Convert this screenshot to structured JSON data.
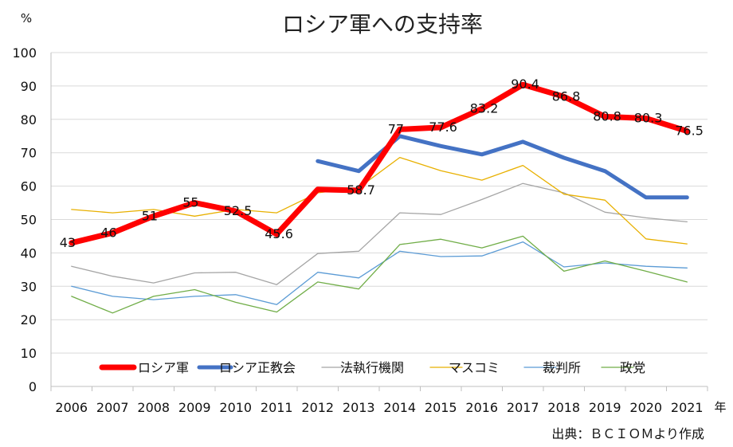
{
  "chart_data": {
    "type": "line",
    "title": "ロシア軍への支持率",
    "y_unit": "%",
    "x_unit": "年",
    "source": "出典：ＢＣＩＯＭより作成",
    "x": [
      "2006",
      "2007",
      "2008",
      "2009",
      "2010",
      "2011",
      "2012",
      "2013",
      "2014",
      "2015",
      "2016",
      "2017",
      "2018",
      "2019",
      "2020",
      "2021"
    ],
    "ylim": [
      0,
      100
    ],
    "yticks": [
      "0",
      "10",
      "20",
      "30",
      "40",
      "50",
      "60",
      "70",
      "80",
      "90",
      "100"
    ],
    "grid": "horizontal",
    "legend_position": "bottom-inside",
    "series": [
      {
        "name": "ロシア軍",
        "color": "#ff0000",
        "emphasis": "bold",
        "values": [
          43,
          46,
          51,
          55,
          52.5,
          45.6,
          59,
          58.7,
          77,
          77.6,
          83.2,
          90.4,
          86.8,
          80.8,
          80.3,
          76.5
        ],
        "labels": [
          "43",
          "46",
          "51",
          "55",
          "52.5",
          "45.6",
          "",
          "58.7",
          "77",
          "77.6",
          "83.2",
          "90.4",
          "86.8",
          "80.8",
          "80.3",
          "76.5"
        ]
      },
      {
        "name": "ロシア正教会",
        "color": "#4472c4",
        "emphasis": "bold",
        "values": [
          null,
          null,
          null,
          null,
          null,
          null,
          67.5,
          64.5,
          75,
          72,
          69.5,
          73.3,
          68.5,
          64.5,
          56.6,
          56.6
        ]
      },
      {
        "name": "法執行機関",
        "color": "#a5a5a5",
        "values": [
          36,
          33,
          31,
          34,
          34.2,
          30.5,
          39.8,
          40.5,
          52,
          51.5,
          56,
          60.8,
          58,
          52.2,
          50.5,
          49.3
        ]
      },
      {
        "name": "マスコミ",
        "color": "#e8b000",
        "values": [
          53,
          52,
          53,
          51,
          53,
          52,
          58,
          59.5,
          68.6,
          64.6,
          61.8,
          66.2,
          57.6,
          55.8,
          44.2,
          42.7
        ]
      },
      {
        "name": "裁判所",
        "color": "#5b9bd5",
        "values": [
          30,
          27,
          26,
          27,
          27.5,
          24.5,
          34.2,
          32.5,
          40.5,
          38.9,
          39.1,
          43.3,
          35.8,
          37,
          36,
          35.5
        ]
      },
      {
        "name": "政党",
        "color": "#70ad47",
        "values": [
          27,
          22,
          27,
          29,
          25.2,
          22.3,
          31.3,
          29.2,
          42.5,
          44.1,
          41.5,
          45,
          34.5,
          37.6,
          34.5,
          31.3
        ]
      }
    ]
  }
}
